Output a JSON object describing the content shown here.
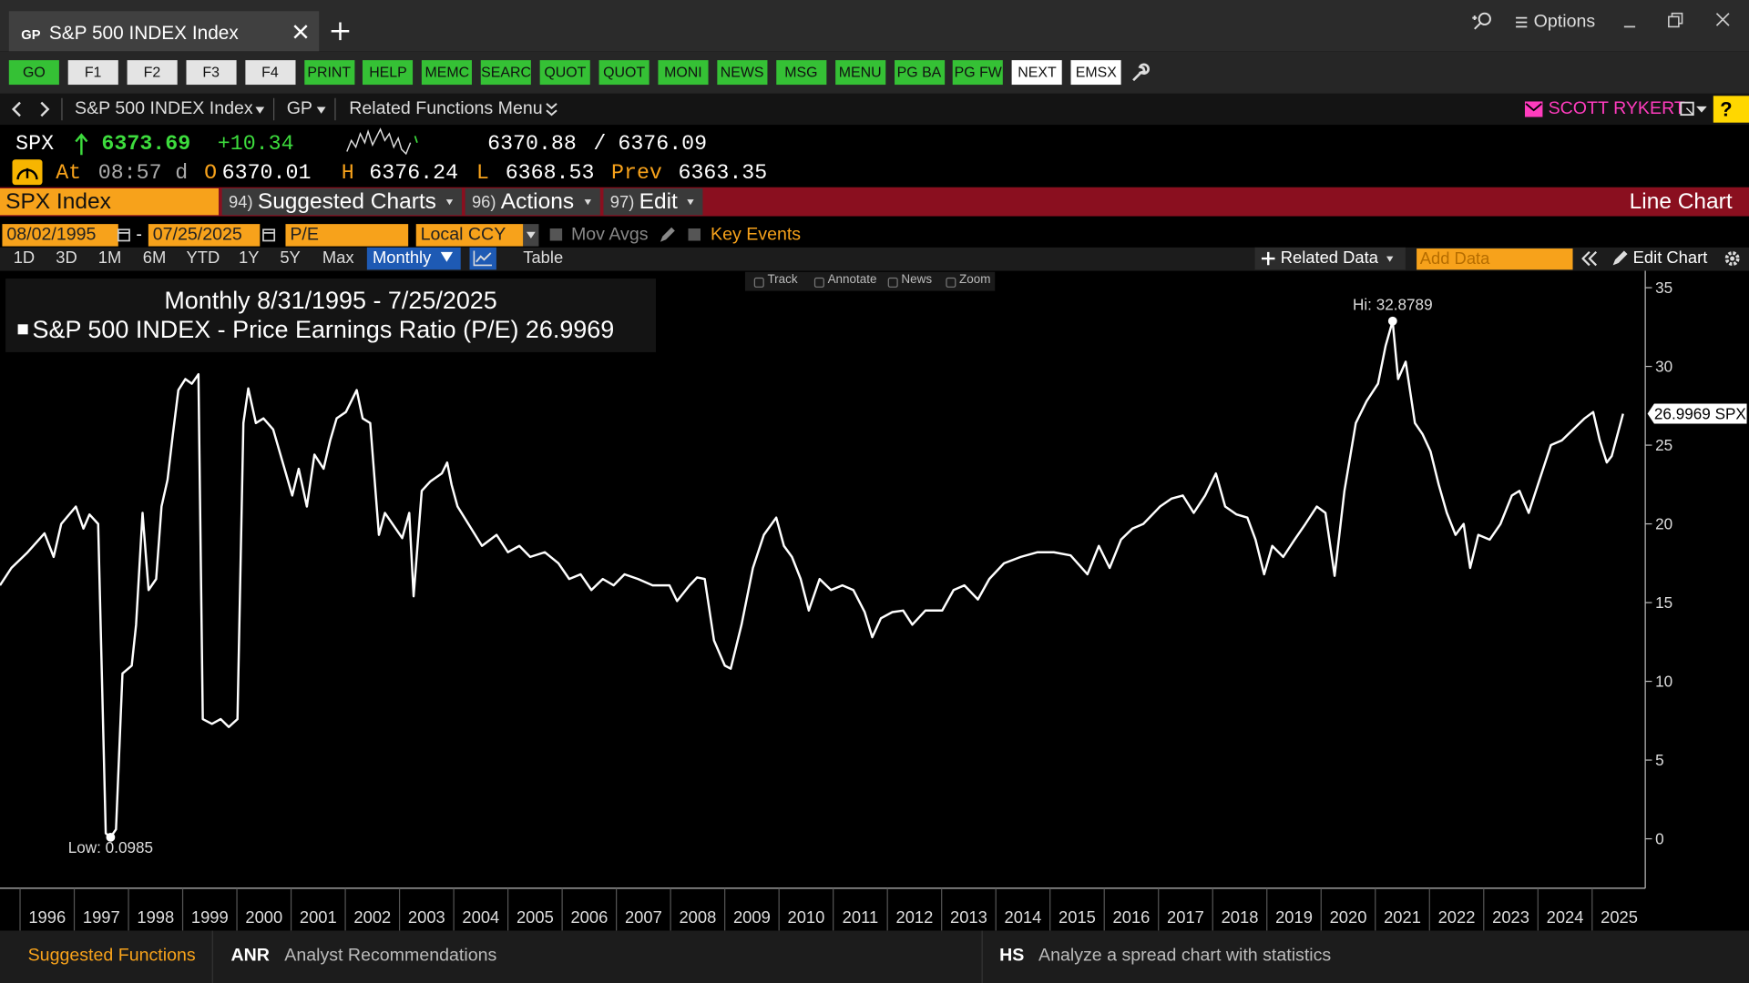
{
  "window": {
    "tab_code": "GP",
    "tab_title": "S&P 500 INDEX Index",
    "options": "Options"
  },
  "toolbar": [
    "GO",
    "F1",
    "F2",
    "F3",
    "F4",
    "PRINT",
    "HELP",
    "MEMC",
    "SEARC",
    "QUOT",
    "QUOT",
    "MONI",
    "NEWS",
    "MSG",
    "MENU",
    "PG BA",
    "PG FW",
    "NEXT",
    "EMSX"
  ],
  "nav": {
    "security": "S&P 500 INDEX Index",
    "function": "GP",
    "related": "Related Functions Menu",
    "user": "SCOTT RYKERT",
    "help": "?"
  },
  "quote": {
    "ticker": "SPX",
    "last": 6373.69,
    "change": "+10.34",
    "bid": 6370.88,
    "separator": "/",
    "ask": 6376.09,
    "at_label": "At",
    "time": "08:57",
    "flag": "d",
    "open_label": "O",
    "open": 6370.01,
    "high_label": "H",
    "high": 6376.24,
    "low_label": "L",
    "low": 6368.53,
    "prev_label": "Prev",
    "prev": 6363.35
  },
  "menu_bar": {
    "security": "SPX Index",
    "items": [
      {
        "num": "94)",
        "label": "Suggested Charts"
      },
      {
        "num": "96)",
        "label": "Actions"
      },
      {
        "num": "97)",
        "label": "Edit"
      }
    ],
    "chart_type": "Line Chart"
  },
  "controls": {
    "start": "08/02/1995",
    "date_sep": "-",
    "end": "07/25/2025",
    "field": "P/E",
    "currency": "Local CCY",
    "mov_avgs": "Mov Avgs",
    "key_events": "Key Events",
    "ranges": [
      "1D",
      "3D",
      "1M",
      "6M",
      "YTD",
      "1Y",
      "5Y",
      "Max"
    ],
    "period": "Monthly",
    "table": "Table",
    "related": "Related Data",
    "add_data": "Add Data",
    "edit": "Edit Chart",
    "tools": [
      "Track",
      "Annotate",
      "News",
      "Zoom"
    ]
  },
  "footer": {
    "title": "Suggested Functions",
    "items": [
      {
        "code": "ANR",
        "desc": "Analyst Recommendations"
      },
      {
        "code": "HS",
        "desc": "Analyze a spread chart with statistics"
      }
    ]
  },
  "chart_data": {
    "type": "line",
    "subtitle": "Monthly 8/31/1995 - 7/25/2025",
    "legend_value": "26.9969",
    "hi_label": "Hi: 32.8789",
    "low_label": "Low: 0.0985",
    "last_label": "26.9969 SPX",
    "x": [
      1995.63,
      1995.84,
      1996.14,
      1996.45,
      1996.62,
      1996.76,
      1997.03,
      1997.17,
      1997.28,
      1997.44,
      1997.58,
      1997.67,
      1997.77,
      1997.89,
      1998.06,
      1998.14,
      1998.26,
      1998.37,
      1998.51,
      1998.61,
      1998.72,
      1998.82,
      1998.92,
      1999.05,
      1999.17,
      1999.29,
      1999.37,
      1999.54,
      1999.7,
      1999.85,
      2000.01,
      2000.12,
      2000.21,
      2000.35,
      2000.49,
      2000.67,
      2000.88,
      2001.02,
      2001.14,
      2001.29,
      2001.43,
      2001.6,
      2001.72,
      2001.84,
      2002.01,
      2002.21,
      2002.32,
      2002.46,
      2002.62,
      2002.73,
      2002.87,
      2003.05,
      2003.18,
      2003.26,
      2003.41,
      2003.57,
      2003.78,
      2003.88,
      2003.96,
      2004.07,
      2004.27,
      2004.52,
      2004.79,
      2005.0,
      2005.21,
      2005.41,
      2005.68,
      2005.93,
      2006.13,
      2006.34,
      2006.54,
      2006.75,
      2006.95,
      2007.15,
      2007.4,
      2007.67,
      2007.98,
      2008.12,
      2008.35,
      2008.49,
      2008.63,
      2008.8,
      2009.0,
      2009.11,
      2009.31,
      2009.52,
      2009.72,
      2009.95,
      2010.09,
      2010.24,
      2010.4,
      2010.55,
      2010.75,
      2010.96,
      2011.17,
      2011.37,
      2011.58,
      2011.72,
      2011.88,
      2012.09,
      2012.29,
      2012.46,
      2012.7,
      2013.01,
      2013.22,
      2013.42,
      2013.67,
      2013.88,
      2014.15,
      2014.46,
      2014.77,
      2015.07,
      2015.38,
      2015.69,
      2015.9,
      2016.1,
      2016.31,
      2016.52,
      2016.72,
      2017.03,
      2017.24,
      2017.45,
      2017.65,
      2017.86,
      2018.06,
      2018.23,
      2018.44,
      2018.64,
      2018.79,
      2018.95,
      2019.1,
      2019.3,
      2019.51,
      2019.71,
      2019.92,
      2020.08,
      2020.25,
      2020.43,
      2020.64,
      2020.84,
      2021.05,
      2021.19,
      2021.32,
      2021.42,
      2021.56,
      2021.73,
      2021.87,
      2022.02,
      2022.17,
      2022.32,
      2022.48,
      2022.63,
      2022.75,
      2022.9,
      2023.11,
      2023.31,
      2023.52,
      2023.66,
      2023.83,
      2024.03,
      2024.24,
      2024.44,
      2024.65,
      2024.86,
      2025.02,
      2025.14,
      2025.27,
      2025.36,
      2025.47,
      2025.57
    ],
    "series": [
      {
        "name": "S&P 500 INDEX - Price Earnings Ratio (P/E)",
        "color": "#ffffff",
        "values": [
          16.1,
          17.2,
          18.2,
          19.4,
          17.9,
          20.0,
          21.1,
          19.7,
          20.6,
          20.0,
          0.35,
          0.0985,
          0.6,
          10.5,
          11.0,
          13.6,
          20.7,
          15.8,
          16.5,
          21.1,
          22.8,
          25.7,
          28.5,
          29.2,
          28.9,
          29.5,
          7.6,
          7.3,
          7.6,
          7.1,
          7.6,
          26.4,
          28.6,
          26.4,
          26.7,
          26.0,
          23.5,
          21.8,
          23.5,
          21.1,
          24.4,
          23.5,
          25.3,
          26.7,
          27.1,
          28.5,
          26.7,
          26.4,
          19.3,
          20.7,
          20.0,
          19.1,
          20.7,
          15.4,
          22.1,
          22.7,
          23.2,
          23.9,
          22.5,
          21.1,
          20.0,
          18.6,
          19.3,
          18.2,
          18.6,
          17.9,
          18.2,
          17.5,
          16.5,
          16.8,
          15.8,
          16.5,
          16.1,
          16.8,
          16.5,
          16.1,
          16.1,
          15.1,
          16.1,
          16.6,
          16.5,
          12.6,
          11.0,
          10.8,
          13.6,
          17.2,
          19.3,
          20.4,
          18.6,
          17.9,
          16.5,
          14.5,
          16.5,
          15.8,
          16.1,
          15.8,
          14.4,
          12.8,
          14.0,
          14.4,
          14.5,
          13.6,
          14.5,
          14.5,
          15.8,
          16.1,
          15.2,
          16.5,
          17.5,
          17.9,
          18.2,
          18.2,
          18.0,
          16.8,
          18.6,
          17.2,
          19.0,
          19.7,
          20.0,
          21.1,
          21.6,
          21.8,
          20.7,
          21.8,
          23.2,
          21.1,
          20.6,
          20.4,
          19.0,
          16.8,
          18.6,
          17.9,
          19.0,
          20.0,
          21.1,
          20.7,
          16.7,
          22.1,
          26.4,
          27.8,
          28.9,
          31.3,
          32.8789,
          29.2,
          30.3,
          26.4,
          25.7,
          24.6,
          22.5,
          20.7,
          19.3,
          20.0,
          17.2,
          19.3,
          19.0,
          20.0,
          21.8,
          22.1,
          20.7,
          22.8,
          25.0,
          25.3,
          26.0,
          26.7,
          27.1,
          25.3,
          23.9,
          24.3,
          25.7,
          26.9969
        ]
      }
    ],
    "xlim": [
      1995.63,
      2025.98
    ],
    "xticks": [
      {
        "value": 1996.5,
        "label": "1996"
      },
      {
        "value": 1997.5,
        "label": "1997"
      },
      {
        "value": 1998.5,
        "label": "1998"
      },
      {
        "value": 1999.5,
        "label": "1999"
      },
      {
        "value": 2000.5,
        "label": "2000"
      },
      {
        "value": 2001.5,
        "label": "2001"
      },
      {
        "value": 2002.5,
        "label": "2002"
      },
      {
        "value": 2003.5,
        "label": "2003"
      },
      {
        "value": 2004.5,
        "label": "2004"
      },
      {
        "value": 2005.5,
        "label": "2005"
      },
      {
        "value": 2006.5,
        "label": "2006"
      },
      {
        "value": 2007.5,
        "label": "2007"
      },
      {
        "value": 2008.5,
        "label": "2008"
      },
      {
        "value": 2009.5,
        "label": "2009"
      },
      {
        "value": 2010.5,
        "label": "2010"
      },
      {
        "value": 2011.5,
        "label": "2011"
      },
      {
        "value": 2012.5,
        "label": "2012"
      },
      {
        "value": 2013.5,
        "label": "2013"
      },
      {
        "value": 2014.5,
        "label": "2014"
      },
      {
        "value": 2015.5,
        "label": "2015"
      },
      {
        "value": 2016.5,
        "label": "2016"
      },
      {
        "value": 2017.5,
        "label": "2017"
      },
      {
        "value": 2018.5,
        "label": "2018"
      },
      {
        "value": 2019.5,
        "label": "2019"
      },
      {
        "value": 2020.5,
        "label": "2020"
      },
      {
        "value": 2021.5,
        "label": "2021"
      },
      {
        "value": 2022.5,
        "label": "2022"
      },
      {
        "value": 2023.5,
        "label": "2023"
      },
      {
        "value": 2024.5,
        "label": "2024"
      },
      {
        "value": 2025.5,
        "label": "2025"
      }
    ],
    "ylim": [
      -3,
      36
    ],
    "yticks": [
      0,
      5,
      10,
      15,
      20,
      25,
      30,
      35
    ]
  }
}
